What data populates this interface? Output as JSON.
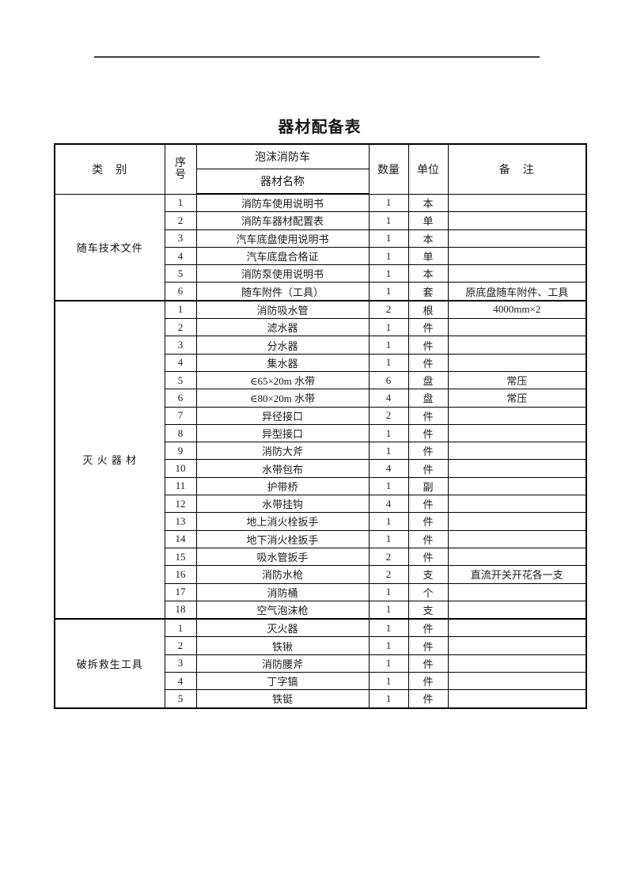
{
  "page": {
    "title": "器材配备表"
  },
  "table": {
    "headers": {
      "category": "类　别",
      "serial_top": "序",
      "serial_bottom": "号",
      "vehicle": "泡沫消防车",
      "equipment_name": "器材名称",
      "quantity": "数量",
      "unit": "单位",
      "remarks": "备　注"
    },
    "sections": [
      {
        "category": "随车技术文件",
        "rows": [
          {
            "no": "1",
            "name": "消防车使用说明书",
            "qty": "1",
            "unit": "本",
            "remark": ""
          },
          {
            "no": "2",
            "name": "消防车器材配置表",
            "qty": "1",
            "unit": "单",
            "remark": ""
          },
          {
            "no": "3",
            "name": "汽车底盘使用说明书",
            "qty": "1",
            "unit": "本",
            "remark": ""
          },
          {
            "no": "4",
            "name": "汽车底盘合格证",
            "qty": "1",
            "unit": "单",
            "remark": ""
          },
          {
            "no": "5",
            "name": "消防泵使用说明书",
            "qty": "1",
            "unit": "本",
            "remark": ""
          },
          {
            "no": "6",
            "name": "随车附件（工具）",
            "qty": "1",
            "unit": "套",
            "remark": "原底盘随车附件、工具"
          }
        ]
      },
      {
        "category": "灭 火 器 材",
        "rows": [
          {
            "no": "1",
            "name": "消防吸水管",
            "qty": "2",
            "unit": "根",
            "remark": "4000mm×2"
          },
          {
            "no": "2",
            "name": "滤水器",
            "qty": "1",
            "unit": "件",
            "remark": ""
          },
          {
            "no": "3",
            "name": "分水器",
            "qty": "1",
            "unit": "件",
            "remark": ""
          },
          {
            "no": "4",
            "name": "集水器",
            "qty": "1",
            "unit": "件",
            "remark": ""
          },
          {
            "no": "5",
            "name": "∈65×20m 水带",
            "qty": "6",
            "unit": "盘",
            "remark": "常压"
          },
          {
            "no": "6",
            "name": "∈80×20m 水带",
            "qty": "4",
            "unit": "盘",
            "remark": "常压"
          },
          {
            "no": "7",
            "name": "异径接口",
            "qty": "2",
            "unit": "件",
            "remark": ""
          },
          {
            "no": "8",
            "name": "异型接口",
            "qty": "1",
            "unit": "件",
            "remark": ""
          },
          {
            "no": "9",
            "name": "消防大斧",
            "qty": "1",
            "unit": "件",
            "remark": ""
          },
          {
            "no": "10",
            "name": "水带包布",
            "qty": "4",
            "unit": "件",
            "remark": ""
          },
          {
            "no": "11",
            "name": "护带桥",
            "qty": "1",
            "unit": "副",
            "remark": ""
          },
          {
            "no": "12",
            "name": "水带挂钩",
            "qty": "4",
            "unit": "件",
            "remark": ""
          },
          {
            "no": "13",
            "name": "地上消火栓扳手",
            "qty": "1",
            "unit": "件",
            "remark": ""
          },
          {
            "no": "14",
            "name": "地下消火栓扳手",
            "qty": "1",
            "unit": "件",
            "remark": ""
          },
          {
            "no": "15",
            "name": "吸水管扳手",
            "qty": "2",
            "unit": "件",
            "remark": ""
          },
          {
            "no": "16",
            "name": "消防水枪",
            "qty": "2",
            "unit": "支",
            "remark": "直流开关开花各一支"
          },
          {
            "no": "17",
            "name": "消防桶",
            "qty": "1",
            "unit": "个",
            "remark": ""
          },
          {
            "no": "18",
            "name": "空气泡沫枪",
            "qty": "1",
            "unit": "支",
            "remark": ""
          }
        ]
      },
      {
        "category": "破拆救生工具",
        "rows": [
          {
            "no": "1",
            "name": "灭火器",
            "qty": "1",
            "unit": "件",
            "remark": ""
          },
          {
            "no": "2",
            "name": "铁锹",
            "qty": "1",
            "unit": "件",
            "remark": ""
          },
          {
            "no": "3",
            "name": "消防腰斧",
            "qty": "1",
            "unit": "件",
            "remark": ""
          },
          {
            "no": "4",
            "name": "丁字镐",
            "qty": "1",
            "unit": "件",
            "remark": ""
          },
          {
            "no": "5",
            "name": "铁铤",
            "qty": "1",
            "unit": "件",
            "remark": ""
          }
        ]
      }
    ]
  }
}
